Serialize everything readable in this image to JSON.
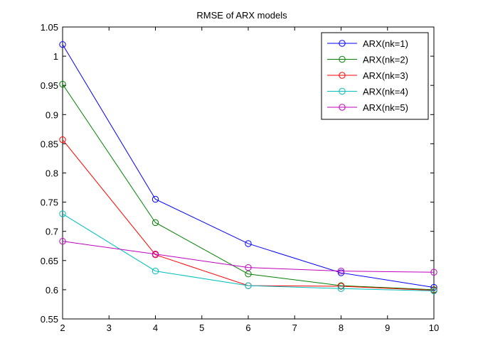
{
  "chart_data": {
    "type": "line",
    "title": "RMSE of ARX models",
    "xlabel": "",
    "ylabel": "",
    "xlim": [
      2,
      10
    ],
    "ylim": [
      0.55,
      1.05
    ],
    "xticks": [
      2,
      3,
      4,
      5,
      6,
      7,
      8,
      9,
      10
    ],
    "yticks": [
      0.55,
      0.6,
      0.65,
      0.7,
      0.75,
      0.8,
      0.85,
      0.9,
      0.95,
      1,
      1.05
    ],
    "ytick_labels": [
      "0.55",
      "0.6",
      "0.65",
      "0.7",
      "0.75",
      "0.8",
      "0.85",
      "0.9",
      "0.95",
      "1",
      "1.05"
    ],
    "grid": false,
    "legend": "top-right",
    "x": [
      2,
      4,
      6,
      8,
      10
    ],
    "series": [
      {
        "name": "ARX(nk=1)",
        "color": "#0000ff",
        "values": [
          1.02,
          0.755,
          0.679,
          0.629,
          0.604
        ]
      },
      {
        "name": "ARX(nk=2)",
        "color": "#008000",
        "values": [
          0.952,
          0.715,
          0.627,
          0.607,
          0.6
        ]
      },
      {
        "name": "ARX(nk=3)",
        "color": "#ff0000",
        "values": [
          0.857,
          0.66,
          0.607,
          0.606,
          0.599
        ]
      },
      {
        "name": "ARX(nk=4)",
        "color": "#00bfbf",
        "values": [
          0.73,
          0.632,
          0.607,
          0.602,
          0.598
        ]
      },
      {
        "name": "ARX(nk=5)",
        "color": "#bf00bf",
        "values": [
          0.683,
          0.661,
          0.638,
          0.632,
          0.63
        ]
      }
    ]
  }
}
